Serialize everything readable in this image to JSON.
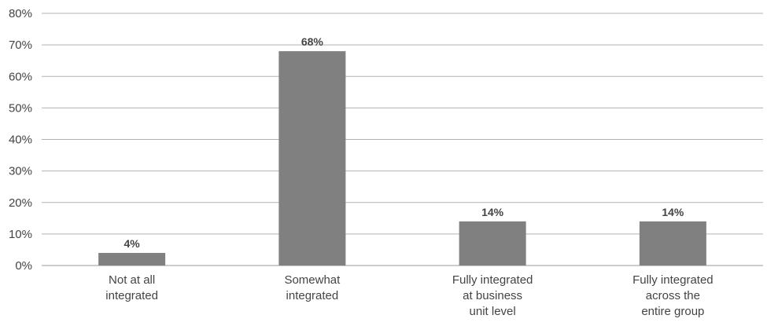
{
  "chart_data": {
    "type": "bar",
    "categories": [
      [
        "Not at all",
        "integrated"
      ],
      [
        "Somewhat",
        "integrated"
      ],
      [
        "Fully integrated",
        "at business",
        "unit level"
      ],
      [
        "Fully integrated",
        "across the",
        "entire group"
      ]
    ],
    "values": [
      4,
      68,
      14,
      14
    ],
    "data_labels": [
      "4%",
      "68%",
      "14%",
      "14%"
    ],
    "title": "",
    "xlabel": "",
    "ylabel": "",
    "ylim": [
      0,
      80
    ],
    "yticks": [
      "0%",
      "10%",
      "20%",
      "30%",
      "40%",
      "50%",
      "60%",
      "70%",
      "80%"
    ],
    "grid": true,
    "legend": "none",
    "bar_color": "#808080",
    "grid_color": "#b3b3b3"
  }
}
